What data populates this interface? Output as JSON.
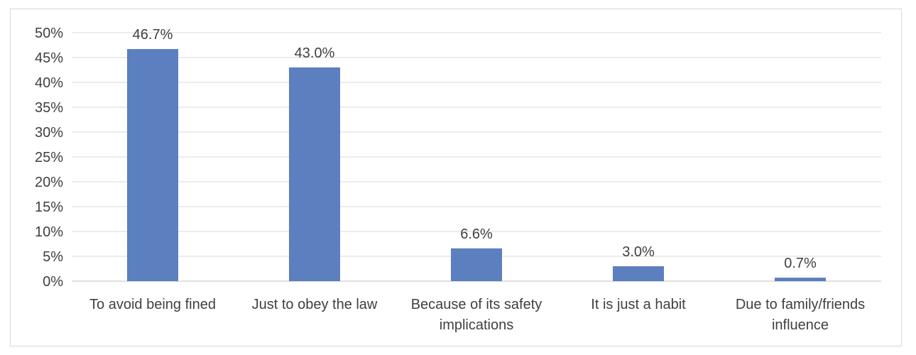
{
  "chart_data": {
    "type": "bar",
    "categories": [
      [
        "To avoid being fined"
      ],
      [
        "Just to obey the law"
      ],
      [
        "Because of its safety",
        "implications"
      ],
      [
        "It is just a habit"
      ],
      [
        "Due to family/friends",
        "influence"
      ]
    ],
    "values": [
      46.7,
      43.0,
      6.6,
      3.0,
      0.7
    ],
    "data_labels": [
      "46.7%",
      "43.0%",
      "6.6%",
      "3.0%",
      "0.7%"
    ],
    "ylim": [
      0,
      50
    ],
    "y_ticks": [
      0,
      5,
      10,
      15,
      20,
      25,
      30,
      35,
      40,
      45,
      50
    ],
    "y_tick_labels": [
      "0%",
      "5%",
      "10%",
      "15%",
      "20%",
      "25%",
      "30%",
      "35%",
      "40%",
      "45%",
      "50%"
    ],
    "bar_color": "#5b7fbf",
    "grid": true,
    "legend": "none"
  }
}
